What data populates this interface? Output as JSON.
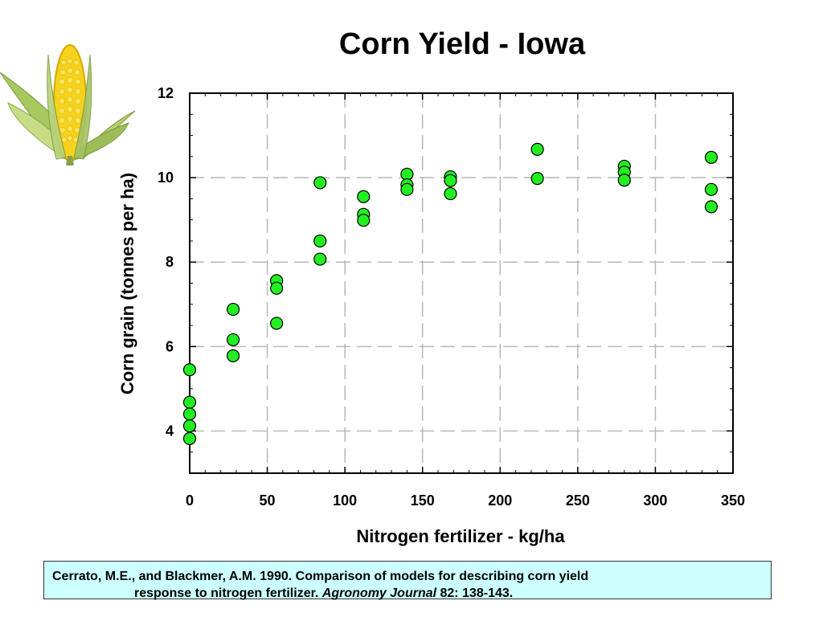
{
  "chart_data": {
    "type": "scatter",
    "title": "Corn Yield - Iowa",
    "xlabel": "Nitrogen fertilizer - kg/ha",
    "ylabel": "Corn grain (tonnes per ha)",
    "xlim": [
      0,
      350
    ],
    "ylim": [
      3,
      12
    ],
    "xticks": [
      0,
      50,
      100,
      150,
      200,
      250,
      300,
      350
    ],
    "yticks": [
      4,
      6,
      8,
      10,
      12
    ],
    "grid": true,
    "marker_color": "#22ee22",
    "points": [
      {
        "x": 0,
        "y": 5.45
      },
      {
        "x": 0,
        "y": 4.68
      },
      {
        "x": 0,
        "y": 4.4
      },
      {
        "x": 0,
        "y": 4.12
      },
      {
        "x": 0,
        "y": 3.82
      },
      {
        "x": 28,
        "y": 6.88
      },
      {
        "x": 28,
        "y": 6.16
      },
      {
        "x": 28,
        "y": 5.78
      },
      {
        "x": 56,
        "y": 7.56
      },
      {
        "x": 56,
        "y": 7.38
      },
      {
        "x": 56,
        "y": 6.55
      },
      {
        "x": 84,
        "y": 9.88
      },
      {
        "x": 84,
        "y": 8.5
      },
      {
        "x": 84,
        "y": 8.07
      },
      {
        "x": 112,
        "y": 9.55
      },
      {
        "x": 112,
        "y": 9.13
      },
      {
        "x": 112,
        "y": 8.99
      },
      {
        "x": 140,
        "y": 10.08
      },
      {
        "x": 140,
        "y": 9.83
      },
      {
        "x": 140,
        "y": 9.72
      },
      {
        "x": 168,
        "y": 10.02
      },
      {
        "x": 168,
        "y": 9.93
      },
      {
        "x": 168,
        "y": 9.62
      },
      {
        "x": 224,
        "y": 10.67
      },
      {
        "x": 224,
        "y": 9.98
      },
      {
        "x": 280,
        "y": 10.27
      },
      {
        "x": 280,
        "y": 10.13
      },
      {
        "x": 280,
        "y": 9.94
      },
      {
        "x": 336,
        "y": 10.48
      },
      {
        "x": 336,
        "y": 9.72
      },
      {
        "x": 336,
        "y": 9.31
      }
    ]
  },
  "citation": {
    "line1": "Cerrato, M.E., and Blackmer, A.M. 1990. Comparison of models for describing corn yield",
    "line2_start": "response to nitrogen fertilizer. ",
    "journal": "Agronomy Journal",
    "line2_end": " 82: 138-143.",
    "background": "#ccffff"
  },
  "image": {
    "icon": "corn-cob-icon"
  }
}
